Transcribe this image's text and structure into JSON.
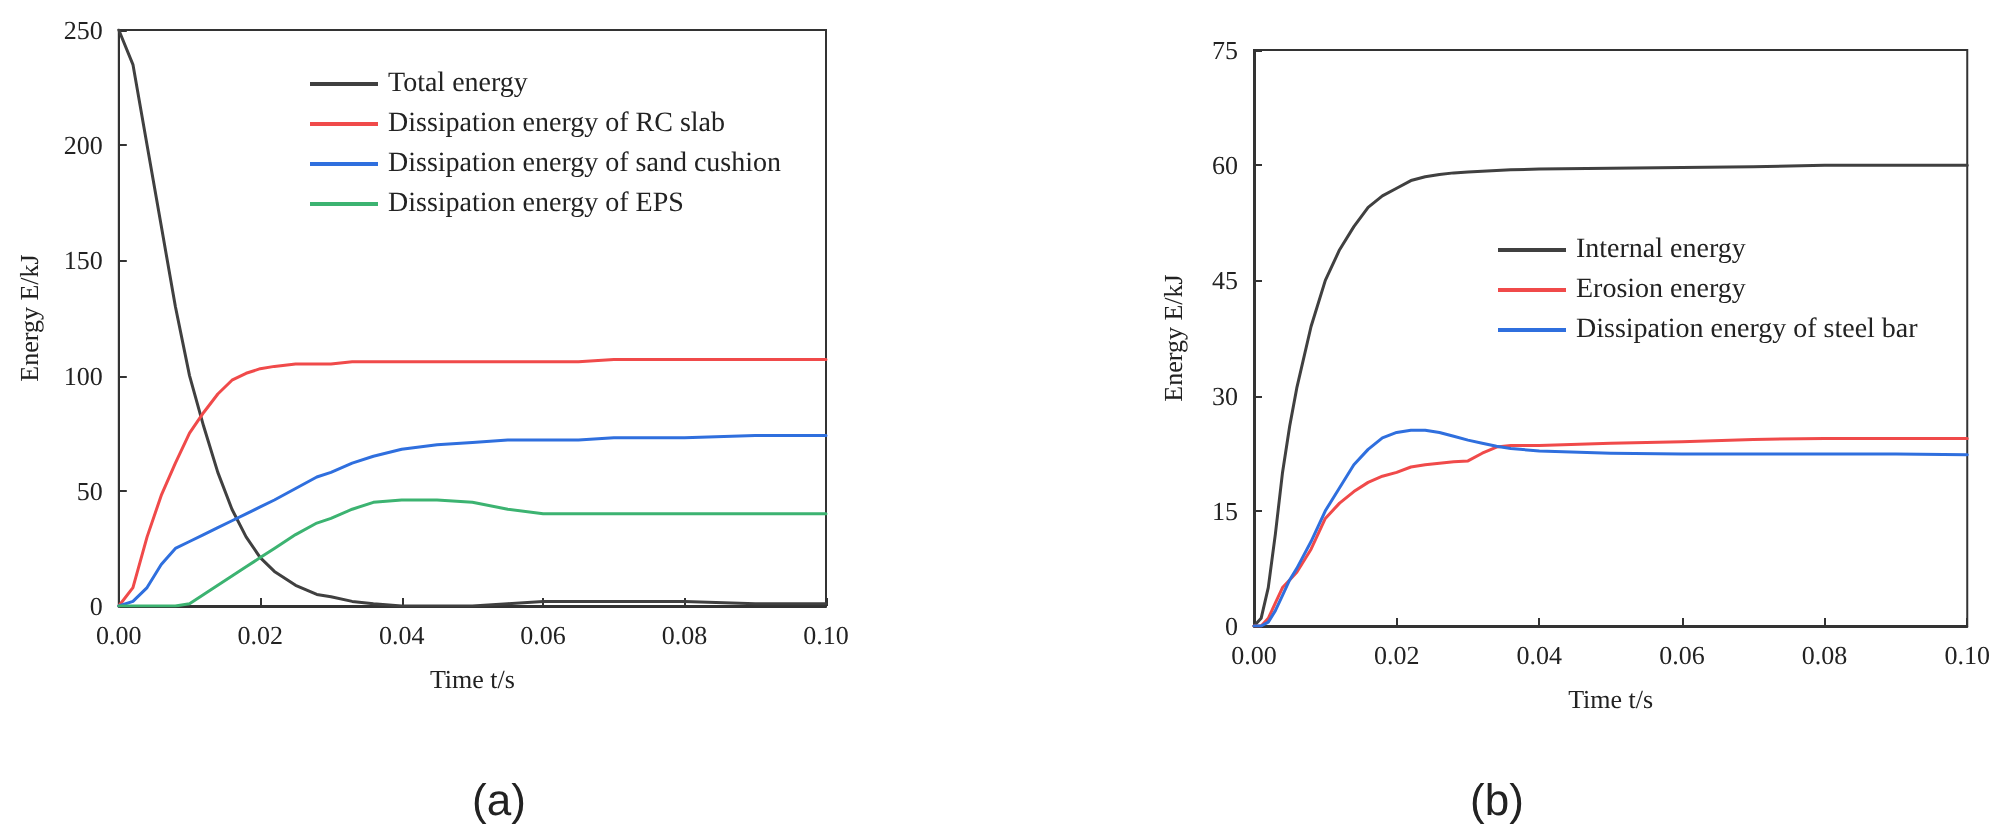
{
  "chart_data": [
    {
      "type": "line",
      "xlabel": "Time t/s",
      "ylabel": "Energy E/kJ",
      "annotations": [
        "(a)"
      ],
      "legend": "top right",
      "grid": false,
      "marker": "none",
      "line_style": "solid",
      "xlim": [
        0,
        0.1
      ],
      "xticks": [
        {
          "value": 0,
          "label": "0.00"
        },
        {
          "value": 0.02,
          "label": "0.02"
        },
        {
          "value": 0.04,
          "label": "0.04"
        },
        {
          "value": 0.06,
          "label": "0.06"
        },
        {
          "value": 0.08,
          "label": "0.08"
        },
        {
          "value": 0.1,
          "label": "0.10"
        }
      ],
      "ylim": [
        0,
        250
      ],
      "yticks": [
        0,
        50,
        100,
        150,
        200,
        250
      ],
      "x": [
        0,
        0.002,
        0.004,
        0.006,
        0.008,
        0.01,
        0.012,
        0.014,
        0.016,
        0.018,
        0.02,
        0.022,
        0.025,
        0.028,
        0.03,
        0.033,
        0.036,
        0.04,
        0.045,
        0.05,
        0.055,
        0.06,
        0.065,
        0.07,
        0.08,
        0.09,
        0.1
      ],
      "series": [
        {
          "name": "Total energy",
          "color": "#404040",
          "values": [
            250,
            235,
            200,
            165,
            130,
            100,
            78,
            58,
            42,
            30,
            21,
            15,
            9,
            5,
            4,
            2,
            1,
            0,
            0,
            0,
            1,
            2,
            2,
            2,
            2,
            1,
            1
          ]
        },
        {
          "name": "Dissipation energy of RC slab",
          "color": "#f04a4a",
          "values": [
            0,
            8,
            30,
            48,
            62,
            75,
            84,
            92,
            98,
            101,
            103,
            104,
            105,
            105,
            105,
            106,
            106,
            106,
            106,
            106,
            106,
            106,
            106,
            107,
            107,
            107,
            107
          ]
        },
        {
          "name": "Dissipation energy of sand cushion",
          "color": "#2f6fde",
          "values": [
            0,
            2,
            8,
            18,
            25,
            28,
            31,
            34,
            37,
            40,
            43,
            46,
            51,
            56,
            58,
            62,
            65,
            68,
            70,
            71,
            72,
            72,
            72,
            73,
            73,
            74,
            74
          ]
        },
        {
          "name": "Dissipation energy of EPS",
          "color": "#3cb371",
          "values": [
            0,
            0,
            0,
            0,
            0,
            1,
            5,
            9,
            13,
            17,
            21,
            25,
            31,
            36,
            38,
            42,
            45,
            46,
            46,
            45,
            42,
            40,
            40,
            40,
            40,
            40,
            40
          ]
        }
      ]
    },
    {
      "type": "line",
      "xlabel": "Time t/s",
      "ylabel": "Energy E/kJ",
      "annotations": [
        "(b)"
      ],
      "legend": "right",
      "grid": false,
      "marker": "none",
      "line_style": "solid",
      "xlim": [
        0,
        0.1
      ],
      "xticks": [
        {
          "value": 0,
          "label": "0.00"
        },
        {
          "value": 0.02,
          "label": "0.02"
        },
        {
          "value": 0.04,
          "label": "0.04"
        },
        {
          "value": 0.06,
          "label": "0.06"
        },
        {
          "value": 0.08,
          "label": "0.08"
        },
        {
          "value": 0.1,
          "label": "0.10"
        }
      ],
      "ylim": [
        0,
        75
      ],
      "yticks": [
        0,
        15,
        30,
        45,
        60,
        75
      ],
      "x": [
        0,
        0.001,
        0.002,
        0.003,
        0.004,
        0.005,
        0.006,
        0.008,
        0.01,
        0.012,
        0.014,
        0.016,
        0.018,
        0.02,
        0.022,
        0.024,
        0.026,
        0.028,
        0.03,
        0.032,
        0.034,
        0.036,
        0.04,
        0.05,
        0.06,
        0.07,
        0.08,
        0.09,
        0.1
      ],
      "series": [
        {
          "name": "Internal energy",
          "color": "#404040",
          "values": [
            0,
            1,
            5,
            12,
            20,
            26,
            31,
            39,
            45,
            49,
            52,
            54.5,
            56,
            57,
            58,
            58.5,
            58.8,
            59,
            59.1,
            59.2,
            59.3,
            59.4,
            59.5,
            59.6,
            59.7,
            59.8,
            60,
            60,
            60
          ]
        },
        {
          "name": "Erosion energy",
          "color": "#f04a4a",
          "values": [
            0,
            0,
            1,
            3,
            5,
            6,
            7,
            10,
            14,
            16,
            17.5,
            18.7,
            19.5,
            20,
            20.7,
            21,
            21.2,
            21.4,
            21.5,
            22.5,
            23.3,
            23.5,
            23.5,
            23.8,
            24,
            24.3,
            24.4,
            24.4,
            24.4
          ]
        },
        {
          "name": "Dissipation energy of steel bar",
          "color": "#2f6fde",
          "values": [
            0,
            0,
            0.5,
            2,
            4,
            6,
            7.5,
            11,
            15,
            18,
            21,
            23,
            24.5,
            25.2,
            25.5,
            25.5,
            25.2,
            24.7,
            24.2,
            23.8,
            23.4,
            23.1,
            22.8,
            22.5,
            22.4,
            22.4,
            22.4,
            22.4,
            22.3
          ]
        }
      ]
    }
  ]
}
